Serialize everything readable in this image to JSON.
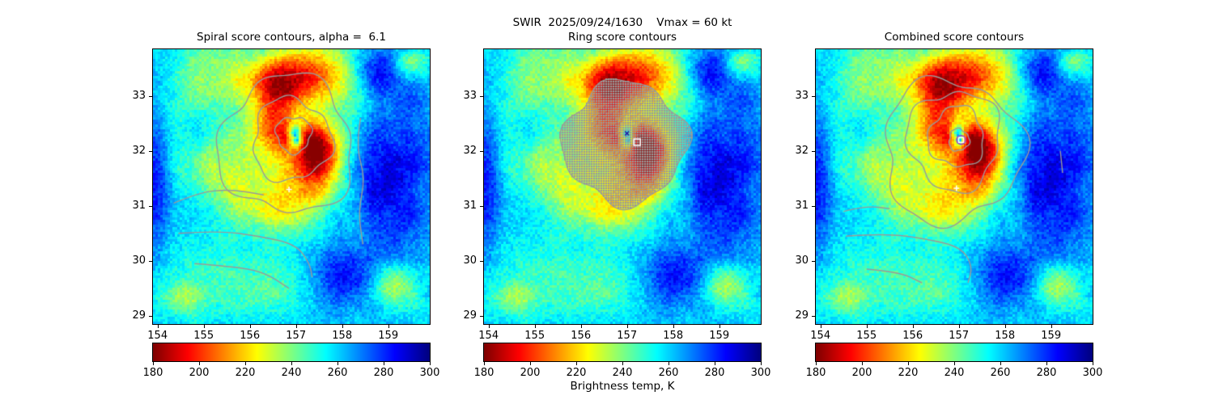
{
  "figure": {
    "suptitle": "SWIR  2025/09/24/1630    Vmax = 60 kt",
    "colorbar_label": "Brightness temp, K",
    "background_color": "#ffffff",
    "contour_color": "#9a9a9a"
  },
  "chart_data": [
    {
      "type": "heatmap",
      "title": "Spiral score contours, alpha =  6.1",
      "variable": "SWIR brightness temperature",
      "units": "K",
      "x_range": [
        153.9,
        159.9
      ],
      "y_range": [
        28.85,
        33.85
      ],
      "x_ticks": [
        154,
        155,
        156,
        157,
        158,
        159
      ],
      "y_ticks": [
        29,
        30,
        31,
        32,
        33
      ],
      "colorbar": {
        "range": [
          180,
          300
        ],
        "ticks": [
          180,
          200,
          220,
          240,
          260,
          280,
          300
        ],
        "colormap": "jet_r",
        "units": "K"
      },
      "image_description": "Tropical cyclone cloud field: cold convective tops (~185-230 K, yellow/orange/red) wrapped around center near lon 157.0 lat 32.2, warm clear slot (~290-300 K, dark blue) east of storm, gray spiral-score contour rings over the core",
      "overlays": {
        "contour_loops": [
          {
            "cx": 156.95,
            "cy": 32.3,
            "rx": 0.38,
            "ry": 0.33
          },
          {
            "cx": 156.9,
            "cy": 32.2,
            "rx": 0.85,
            "ry": 0.75
          },
          {
            "cx": 156.8,
            "cy": 32.1,
            "rx": 1.45,
            "ry": 1.25
          }
        ],
        "contour_lines": [
          [
            [
              154.35,
              31.05
            ],
            [
              154.9,
              31.25
            ],
            [
              155.6,
              31.3
            ],
            [
              156.3,
              31.2
            ]
          ],
          [
            [
              154.45,
              30.5
            ],
            [
              155.3,
              30.55
            ],
            [
              156.2,
              30.45
            ],
            [
              157.0,
              30.3
            ],
            [
              157.3,
              29.95
            ],
            [
              157.35,
              29.7
            ]
          ],
          [
            [
              154.8,
              29.95
            ],
            [
              155.6,
              29.9
            ],
            [
              156.3,
              29.8
            ],
            [
              156.85,
              29.5
            ]
          ],
          [
            [
              158.4,
              32.6
            ],
            [
              158.3,
              32.1
            ],
            [
              158.5,
              31.5
            ],
            [
              158.35,
              30.9
            ],
            [
              158.45,
              30.3
            ]
          ]
        ],
        "markers": [
          {
            "type": "plus",
            "lon": 156.85,
            "lat": 31.3,
            "color": "#ffffff",
            "size": 7
          }
        ]
      }
    },
    {
      "type": "heatmap",
      "title": "Ring score contours",
      "variable": "SWIR brightness temperature",
      "units": "K",
      "x_range": [
        153.9,
        159.9
      ],
      "y_range": [
        28.85,
        33.85
      ],
      "x_ticks": [
        154,
        155,
        156,
        157,
        158,
        159
      ],
      "y_ticks": [
        29,
        30,
        31,
        32,
        33
      ],
      "colorbar": {
        "range": [
          180,
          300
        ],
        "ticks": [
          180,
          200,
          220,
          240,
          260,
          280,
          300
        ],
        "colormap": "jet_r",
        "units": "K"
      },
      "image_description": "Same brightness-temperature field with dense speckled gray ring-score contour mass covering the storm core and a white square marker at the best ring center",
      "overlays": {
        "speckle_region": {
          "cx": 156.95,
          "cy": 32.15,
          "rx": 1.32,
          "ry": 1.1
        },
        "markers": [
          {
            "type": "square",
            "lon": 157.22,
            "lat": 32.16,
            "color": "#ffffff",
            "size": 8
          },
          {
            "type": "x",
            "lon": 157.0,
            "lat": 32.32,
            "color": "#1a1aa6",
            "size": 5
          }
        ]
      }
    },
    {
      "type": "heatmap",
      "title": "Combined score contours",
      "variable": "SWIR brightness temperature",
      "units": "K",
      "x_range": [
        153.9,
        159.9
      ],
      "y_range": [
        28.85,
        33.85
      ],
      "x_ticks": [
        154,
        155,
        156,
        157,
        158,
        159
      ],
      "y_ticks": [
        29,
        30,
        31,
        32,
        33
      ],
      "colorbar": {
        "range": [
          180,
          300
        ],
        "ticks": [
          180,
          200,
          220,
          240,
          260,
          280,
          300
        ],
        "colormap": "jet_r",
        "units": "K"
      },
      "image_description": "Same field with gray combined-score contour rings converging on the storm center, marked by a white square inside a purple circle at lon 157.05 lat 32.2",
      "overlays": {
        "contour_loops": [
          {
            "cx": 157.0,
            "cy": 32.2,
            "rx": 0.22,
            "ry": 0.2
          },
          {
            "cx": 156.95,
            "cy": 32.25,
            "rx": 0.6,
            "ry": 0.55
          },
          {
            "cx": 156.9,
            "cy": 32.2,
            "rx": 1.0,
            "ry": 0.9
          },
          {
            "cx": 156.85,
            "cy": 32.0,
            "rx": 1.5,
            "ry": 1.3
          }
        ],
        "contour_lines": [
          [
            [
              154.5,
              30.9
            ],
            [
              155.0,
              31.0
            ],
            [
              155.5,
              30.95
            ]
          ],
          [
            [
              154.55,
              30.45
            ],
            [
              155.4,
              30.5
            ],
            [
              156.3,
              30.4
            ],
            [
              157.05,
              30.25
            ],
            [
              157.3,
              29.9
            ],
            [
              157.2,
              29.6
            ]
          ],
          [
            [
              155.0,
              29.85
            ],
            [
              155.7,
              29.8
            ],
            [
              156.2,
              29.6
            ]
          ],
          [
            [
              159.2,
              32.0
            ],
            [
              159.25,
              31.6
            ]
          ]
        ],
        "markers": [
          {
            "type": "circle",
            "lon": 157.05,
            "lat": 32.2,
            "color": "#9b30d0",
            "size": 11
          },
          {
            "type": "square",
            "lon": 157.05,
            "lat": 32.2,
            "color": "#ffffff",
            "size": 6
          },
          {
            "type": "plus",
            "lon": 156.95,
            "lat": 31.32,
            "color": "#ffffff",
            "size": 7
          }
        ]
      }
    }
  ]
}
